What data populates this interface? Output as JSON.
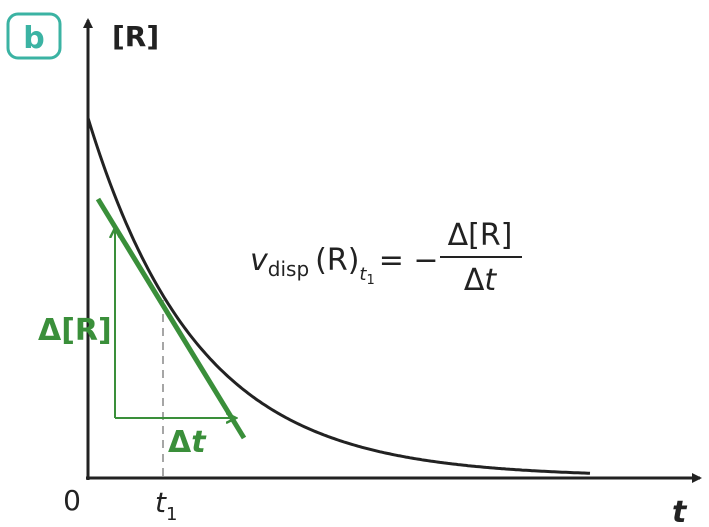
{
  "panel_label": "b",
  "axes": {
    "y_label": "[R]",
    "x_label": "t",
    "origin": "0",
    "t1": {
      "main": "t",
      "sub": "1"
    }
  },
  "formula": {
    "v": "v",
    "v_sub": "disp",
    "species": "(R)",
    "t": "t",
    "t_sub": "1",
    "equals": "= −",
    "numerator": "Δ[R]",
    "denominator": {
      "delta": "Δ",
      "t": "t"
    }
  },
  "annotations": {
    "delta_r": "Δ[R]",
    "delta_t": {
      "delta": "Δ",
      "t": "t"
    }
  }
}
